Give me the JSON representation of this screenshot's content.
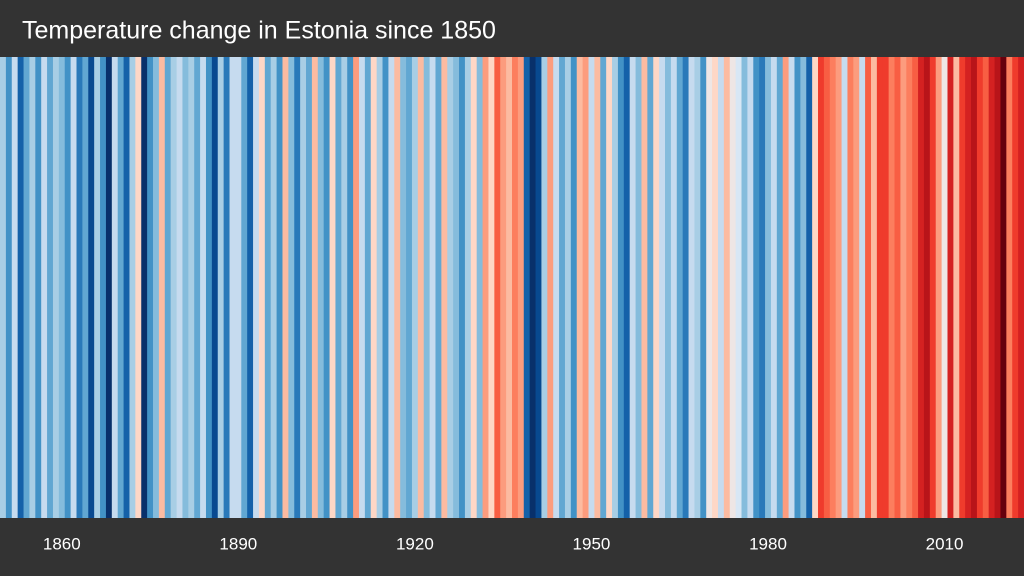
{
  "chart_data": {
    "type": "stripes",
    "title": "Temperature change in Estonia since 1850",
    "x": [
      1850,
      1851,
      1852,
      1853,
      1854,
      1855,
      1856,
      1857,
      1858,
      1859,
      1860,
      1861,
      1862,
      1863,
      1864,
      1865,
      1866,
      1867,
      1868,
      1869,
      1870,
      1871,
      1872,
      1873,
      1874,
      1875,
      1876,
      1877,
      1878,
      1879,
      1880,
      1881,
      1882,
      1883,
      1884,
      1885,
      1886,
      1887,
      1888,
      1889,
      1890,
      1891,
      1892,
      1893,
      1894,
      1895,
      1896,
      1897,
      1898,
      1899,
      1900,
      1901,
      1902,
      1903,
      1904,
      1905,
      1906,
      1907,
      1908,
      1909,
      1910,
      1911,
      1912,
      1913,
      1914,
      1915,
      1916,
      1917,
      1918,
      1919,
      1920,
      1921,
      1922,
      1923,
      1924,
      1925,
      1926,
      1927,
      1928,
      1929,
      1930,
      1931,
      1932,
      1933,
      1934,
      1935,
      1936,
      1937,
      1938,
      1939,
      1940,
      1941,
      1942,
      1943,
      1944,
      1945,
      1946,
      1947,
      1948,
      1949,
      1950,
      1951,
      1952,
      1953,
      1954,
      1955,
      1956,
      1957,
      1958,
      1959,
      1960,
      1961,
      1962,
      1963,
      1964,
      1965,
      1966,
      1967,
      1968,
      1969,
      1970,
      1971,
      1972,
      1973,
      1974,
      1975,
      1976,
      1977,
      1978,
      1979,
      1980,
      1981,
      1982,
      1983,
      1984,
      1985,
      1986,
      1987,
      1988,
      1989,
      1990,
      1991,
      1992,
      1993,
      1994,
      1995,
      1996,
      1997,
      1998,
      1999,
      2000,
      2001,
      2002,
      2003,
      2004,
      2005,
      2006,
      2007,
      2008,
      2009,
      2010,
      2011,
      2012,
      2013,
      2014,
      2015,
      2016,
      2017,
      2018,
      2019,
      2020,
      2021,
      2022,
      2023
    ],
    "values": [
      -0.3,
      -0.6,
      -0.2,
      -0.8,
      -0.5,
      -0.3,
      -0.6,
      -0.2,
      -0.5,
      -0.3,
      -0.4,
      -0.6,
      -0.2,
      -0.7,
      -0.5,
      -0.9,
      -0.3,
      -0.6,
      -1.0,
      -0.2,
      -0.5,
      -0.8,
      -0.3,
      0.1,
      -1.0,
      -0.6,
      -0.4,
      0.2,
      -0.5,
      -0.3,
      -0.2,
      -0.4,
      -0.3,
      -0.5,
      -0.2,
      -0.6,
      -0.9,
      -0.3,
      -0.7,
      -0.2,
      -0.2,
      -0.5,
      -0.8,
      -0.2,
      0.1,
      -0.5,
      -0.3,
      -0.6,
      0.2,
      -0.4,
      -0.7,
      -0.3,
      -0.5,
      0.2,
      -0.4,
      -0.6,
      0.1,
      -0.5,
      -0.3,
      -0.6,
      0.3,
      -0.2,
      -0.5,
      0.1,
      -0.3,
      -0.6,
      -0.2,
      0.2,
      -0.4,
      -0.5,
      -0.3,
      0.2,
      -0.4,
      -0.2,
      -0.5,
      0.2,
      -0.3,
      -0.4,
      -0.6,
      -0.3,
      0.1,
      -0.4,
      0.3,
      0.1,
      0.5,
      0.3,
      0.2,
      0.4,
      0.3,
      -0.8,
      -1.1,
      -0.9,
      -0.3,
      0.3,
      -0.2,
      -0.5,
      -0.3,
      -0.6,
      0.2,
      0.3,
      -0.2,
      0.2,
      -0.5,
      0.1,
      -0.3,
      -0.6,
      -0.8,
      -0.2,
      -0.4,
      0.2,
      -0.5,
      0.1,
      -0.2,
      -0.4,
      -0.2,
      -0.5,
      -0.7,
      -0.2,
      -0.3,
      -0.6,
      0.0,
      0.1,
      -0.2,
      0.2,
      0.0,
      -0.1,
      -0.4,
      -0.2,
      -0.6,
      -0.7,
      -0.4,
      -0.2,
      -0.5,
      0.3,
      -0.2,
      -0.6,
      -0.4,
      -0.8,
      0.1,
      0.6,
      0.5,
      0.4,
      0.3,
      -0.2,
      0.4,
      0.3,
      -0.2,
      0.5,
      0.2,
      0.6,
      0.6,
      0.4,
      0.5,
      0.3,
      0.4,
      0.5,
      0.7,
      0.8,
      0.6,
      0.3,
      0.0,
      0.7,
      0.2,
      0.6,
      0.7,
      0.8,
      0.6,
      0.5,
      0.7,
      0.8,
      1.0,
      0.4,
      0.6,
      0.7
    ],
    "xlim": [
      1849.5,
      2023.5
    ],
    "xticks": [
      1860,
      1890,
      1920,
      1950,
      1980,
      2010
    ],
    "clim": [
      -1,
      1
    ],
    "colors": [
      "#08306b",
      "#08519c",
      "#2171b5",
      "#4292c6",
      "#6baed6",
      "#9ecae1",
      "#c6dbef",
      "#deebf7",
      "#fee0d2",
      "#fcbba1",
      "#fc9272",
      "#fb6a4a",
      "#ef3b2c",
      "#cb181d",
      "#a50f15",
      "#67000d"
    ]
  }
}
